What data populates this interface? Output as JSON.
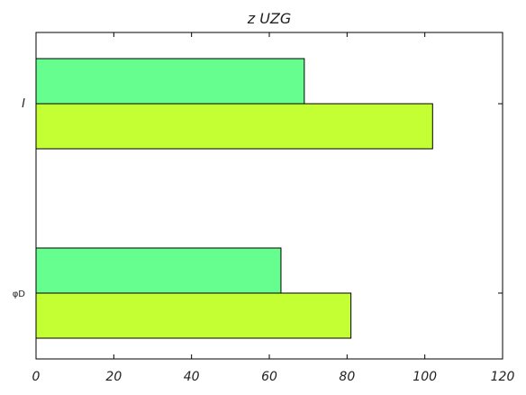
{
  "chart_data": {
    "type": "bar",
    "orientation": "horizontal",
    "title": "z  UZG",
    "xlabel": "",
    "ylabel": "",
    "categories": [
      "I",
      "φD"
    ],
    "series": [
      {
        "values": [
          69,
          63
        ],
        "color": "#66ff8f"
      },
      {
        "values": [
          102,
          81
        ],
        "color": "#c4ff33"
      }
    ],
    "xlim": [
      0,
      120
    ],
    "xticks": [
      0,
      20,
      40,
      60,
      80,
      100,
      120
    ],
    "grid": false,
    "legend": "none"
  }
}
